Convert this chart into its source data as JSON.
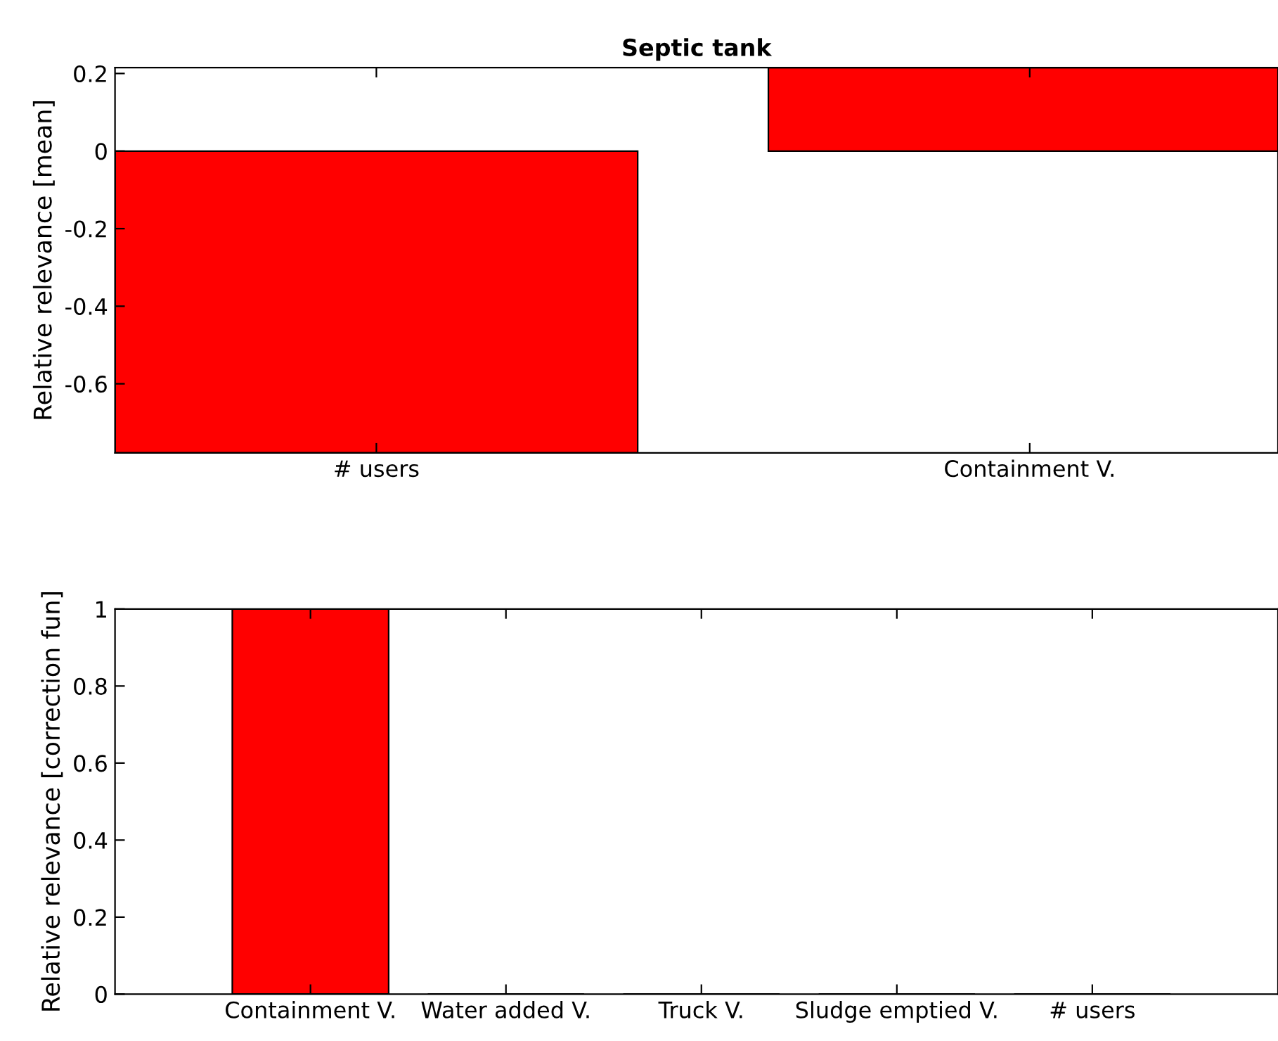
{
  "chart_data": [
    {
      "type": "bar",
      "title": "Septic tank",
      "ylabel": "Relative relevance [mean]",
      "categories": [
        "# users",
        "Containment V."
      ],
      "series": [
        {
          "color": "#ff0000",
          "values": [
            -0.778,
            0.215
          ]
        }
      ],
      "ylim": [
        -0.778,
        0.215
      ],
      "yticks": [
        -0.6,
        -0.4,
        -0.2,
        0,
        0.2
      ],
      "grid": false,
      "legend": false
    },
    {
      "type": "bar",
      "ylabel": "Relative relevance [correction fun]",
      "categories": [
        "Containment V.",
        "Water added V.",
        "Truck V.",
        "Sludge emptied V.",
        "# users"
      ],
      "series": [
        {
          "color": "#ff0000",
          "values": [
            1,
            0,
            0,
            0,
            0
          ]
        }
      ],
      "ylim": [
        0,
        1
      ],
      "yticks": [
        0,
        0.2,
        0.4,
        0.6,
        0.8,
        1
      ],
      "grid": false,
      "legend": false
    }
  ]
}
